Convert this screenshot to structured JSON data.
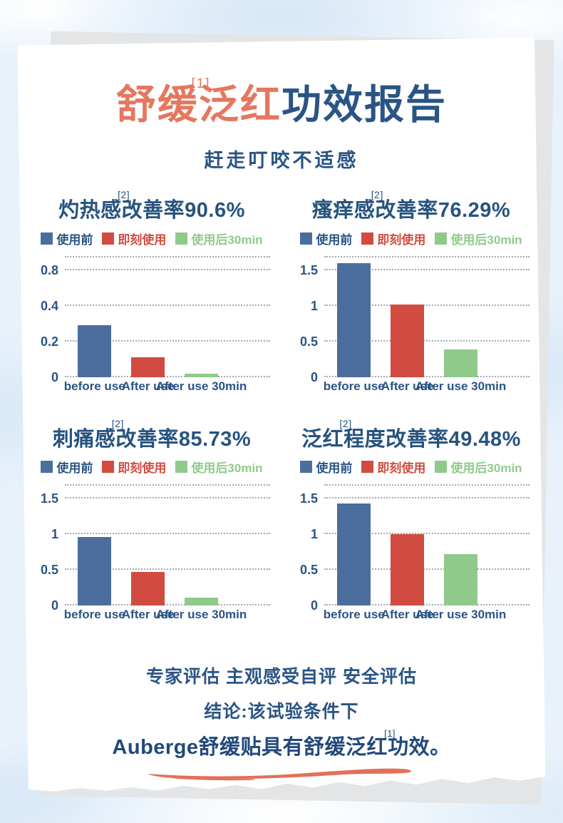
{
  "header": {
    "title_part1": "舒缓",
    "title_sup": "[1]",
    "title_part2": "泛红",
    "title_rest": "功效报告",
    "subtitle": "赶走叮咬不适感"
  },
  "legend": {
    "items": [
      {
        "label": "使用前",
        "color": "#4c6e9e",
        "text_color": "#2a5484"
      },
      {
        "label": "即刻使用",
        "color": "#d14b40",
        "text_color": "#d14b40"
      },
      {
        "label": "使用后30min",
        "color": "#8fca8b",
        "text_color": "#8fca8b"
      }
    ]
  },
  "chart_data": [
    {
      "type": "bar",
      "title": "灼热感改善率90.6%",
      "title_pre": "灼热感",
      "footnote": "[2]",
      "title_post": "改善率90.6%",
      "categories": [
        "before use",
        "After use",
        "After use 30min"
      ],
      "series": [
        {
          "name": "使用前",
          "values": [
            0.29
          ]
        },
        {
          "name": "即刻使用",
          "values": [
            0.11
          ]
        },
        {
          "name": "使用后30min",
          "values": [
            0.02
          ]
        }
      ],
      "values": [
        0.29,
        0.11,
        0.02
      ],
      "yticks": [
        0,
        0.2,
        0.4,
        0.8
      ],
      "ylim": [
        0,
        0.8
      ],
      "grid": "horizontal-dotted",
      "legend_position": "top"
    },
    {
      "type": "bar",
      "title": "瘙痒感改善率76.29%",
      "title_pre": "瘙痒感",
      "footnote": "[2]",
      "title_post": "改善率76.29%",
      "categories": [
        "before use",
        "After use",
        "After use 30min"
      ],
      "series": [
        {
          "name": "使用前",
          "values": [
            1.6
          ]
        },
        {
          "name": "即刻使用",
          "values": [
            1.02
          ]
        },
        {
          "name": "使用后30min",
          "values": [
            0.39
          ]
        }
      ],
      "values": [
        1.6,
        1.02,
        0.39
      ],
      "yticks": [
        0,
        0.5,
        1,
        1.5
      ],
      "ylim": [
        0,
        1.7
      ],
      "grid": "horizontal-dotted",
      "legend_position": "top"
    },
    {
      "type": "bar",
      "title": "刺痛感改善率85.73%",
      "title_pre": "刺痛感",
      "footnote": "[2]",
      "title_post": "改善率85.73%",
      "categories": [
        "before use",
        "After use",
        "After use 30min"
      ],
      "series": [
        {
          "name": "使用前",
          "values": [
            0.96
          ]
        },
        {
          "name": "即刻使用",
          "values": [
            0.47
          ]
        },
        {
          "name": "使用后30min",
          "values": [
            0.11
          ]
        }
      ],
      "values": [
        0.96,
        0.47,
        0.11
      ],
      "yticks": [
        0,
        0.5,
        1,
        1.5
      ],
      "ylim": [
        0,
        1.7
      ],
      "grid": "horizontal-dotted",
      "legend_position": "top"
    },
    {
      "type": "bar",
      "title": "泛红程度改善率49.48%",
      "title_pre": "泛红",
      "footnote": "[2]",
      "title_post": "程度改善率49.48%",
      "categories": [
        "before use",
        "After use",
        "After use 30min"
      ],
      "series": [
        {
          "name": "使用前",
          "values": [
            1.43
          ]
        },
        {
          "name": "即刻使用",
          "values": [
            1.0
          ]
        },
        {
          "name": "使用后30min",
          "values": [
            0.72
          ]
        }
      ],
      "values": [
        1.43,
        1.0,
        0.72
      ],
      "yticks": [
        0,
        0.5,
        1,
        1.5
      ],
      "ylim": [
        0,
        1.7
      ],
      "grid": "horizontal-dotted",
      "legend_position": "top"
    }
  ],
  "footer": {
    "eval_line": "专家评估 主观感受自评 安全评估",
    "conclusion_intro": "结论:该试验条件下",
    "conclusion_part1": "Auberge舒缓贴具有舒缓泛红",
    "conclusion_sup": "[1]",
    "conclusion_part2": "功效。"
  },
  "colors": {
    "accent_coral": "#e5775f",
    "title_blue": "#2a5484",
    "bar_blue": "#4c6e9e",
    "bar_red": "#d14b40",
    "bar_green": "#8fca8b",
    "paper": "#ffffff",
    "sky": "#e9f2fb"
  }
}
